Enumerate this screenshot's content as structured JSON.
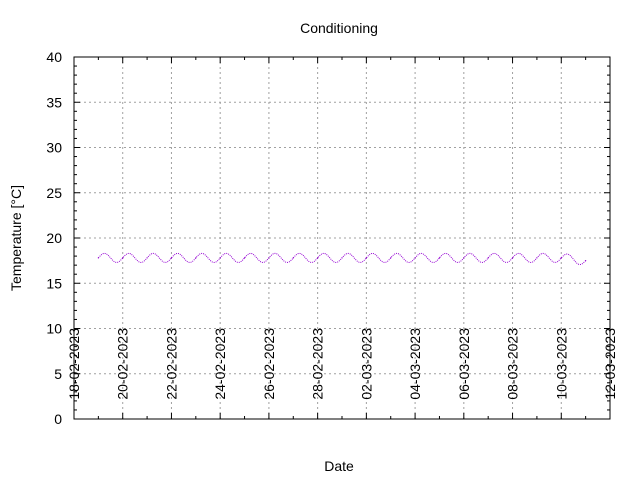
{
  "chart_data": {
    "type": "line",
    "title": "Conditioning",
    "xlabel": "Date",
    "ylabel": "Temperature [°C]",
    "ylim": [
      0,
      40
    ],
    "yticks": [
      0,
      5,
      10,
      15,
      20,
      25,
      30,
      35,
      40
    ],
    "xlim": [
      "2023-02-18",
      "2023-03-12"
    ],
    "xtick_labels": [
      "18-02-2023",
      "20-02-2023",
      "22-02-2023",
      "24-02-2023",
      "26-02-2023",
      "28-02-2023",
      "02-03-2023",
      "04-03-2023",
      "06-03-2023",
      "08-03-2023",
      "10-03-2023",
      "12-03-2023"
    ],
    "xticks": [
      "2023-02-18",
      "2023-02-20",
      "2023-02-22",
      "2023-02-24",
      "2023-02-26",
      "2023-02-28",
      "2023-03-02",
      "2023-03-04",
      "2023-03-06",
      "2023-03-08",
      "2023-03-10",
      "2023-03-12"
    ],
    "grid": true,
    "series": [
      {
        "color": "#9400d3",
        "style": "dotted",
        "daily_min": 17.3,
        "daily_max": 18.3,
        "x": [
          "2023-02-19",
          "2023-02-20",
          "2023-02-21",
          "2023-02-22",
          "2023-02-23",
          "2023-02-24",
          "2023-02-25",
          "2023-02-26",
          "2023-02-27",
          "2023-02-28",
          "2023-03-01",
          "2023-03-02",
          "2023-03-03",
          "2023-03-04",
          "2023-03-05",
          "2023-03-06",
          "2023-03-07",
          "2023-03-08",
          "2023-03-09",
          "2023-03-10",
          "2023-03-11"
        ],
        "y": [
          17.8,
          17.8,
          17.8,
          17.8,
          17.8,
          17.8,
          17.8,
          17.8,
          17.8,
          17.8,
          17.8,
          17.8,
          17.8,
          17.8,
          17.8,
          17.8,
          17.8,
          17.8,
          17.8,
          17.8,
          17.5
        ]
      }
    ]
  }
}
